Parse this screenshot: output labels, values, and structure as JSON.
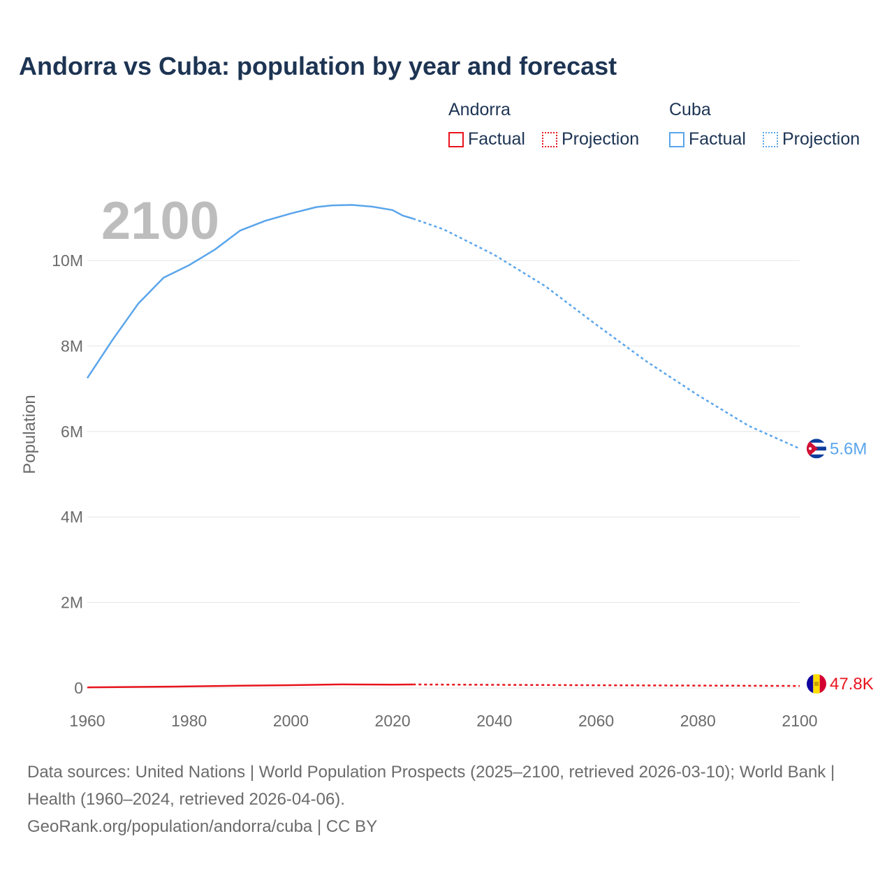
{
  "title": "Andorra vs Cuba: population by year and forecast",
  "legend": {
    "groups": [
      {
        "name": "Andorra",
        "factual": "Factual",
        "projection": "Projection",
        "color": "#e8141c"
      },
      {
        "name": "Cuba",
        "factual": "Factual",
        "projection": "Projection",
        "color": "#5aa5eb"
      }
    ]
  },
  "year_watermark": "2100",
  "footer": {
    "sources": "Data sources: United Nations | World Population Prospects (2025–2100, retrieved 2026-03-10); World Bank | Health (1960–2024, retrieved 2026-04-06).",
    "credit": "GeoRank.org/population/andorra/cuba | CC BY"
  },
  "chart_data": {
    "type": "line",
    "title": "Andorra vs Cuba: population by year and forecast",
    "xlabel": "",
    "ylabel": "Population",
    "xlim": [
      1960,
      2100
    ],
    "ylim": [
      0,
      11500000
    ],
    "x_ticks": [
      "1960",
      "1980",
      "2000",
      "2020",
      "2040",
      "2060",
      "2080",
      "2100"
    ],
    "y_ticks": [
      {
        "value": 0,
        "label": "0"
      },
      {
        "value": 2000000,
        "label": "2M"
      },
      {
        "value": 4000000,
        "label": "4M"
      },
      {
        "value": 6000000,
        "label": "6M"
      },
      {
        "value": 8000000,
        "label": "8M"
      },
      {
        "value": 10000000,
        "label": "10M"
      }
    ],
    "factual_until": 2024,
    "series": [
      {
        "name": "Cuba",
        "color": "#5aa5eb",
        "end_label": "5.6M",
        "x": [
          1960,
          1965,
          1970,
          1975,
          1980,
          1985,
          1990,
          1995,
          2000,
          2005,
          2008,
          2012,
          2016,
          2020,
          2022,
          2024,
          2030,
          2040,
          2050,
          2060,
          2070,
          2080,
          2090,
          2100
        ],
        "y": [
          7250000,
          8150000,
          8990000,
          9600000,
          9890000,
          10250000,
          10700000,
          10930000,
          11100000,
          11250000,
          11290000,
          11300000,
          11260000,
          11180000,
          11050000,
          10980000,
          10730000,
          10130000,
          9400000,
          8500000,
          7630000,
          6850000,
          6130000,
          5600000
        ]
      },
      {
        "name": "Andorra",
        "color": "#e8141c",
        "end_label": "47.8K",
        "x": [
          1960,
          1970,
          1980,
          1990,
          2000,
          2010,
          2020,
          2024,
          2040,
          2060,
          2080,
          2100
        ],
        "y": [
          13000,
          24000,
          36000,
          54000,
          66000,
          84000,
          78000,
          81000,
          74000,
          64000,
          55000,
          47800
        ]
      }
    ],
    "grid": true
  }
}
